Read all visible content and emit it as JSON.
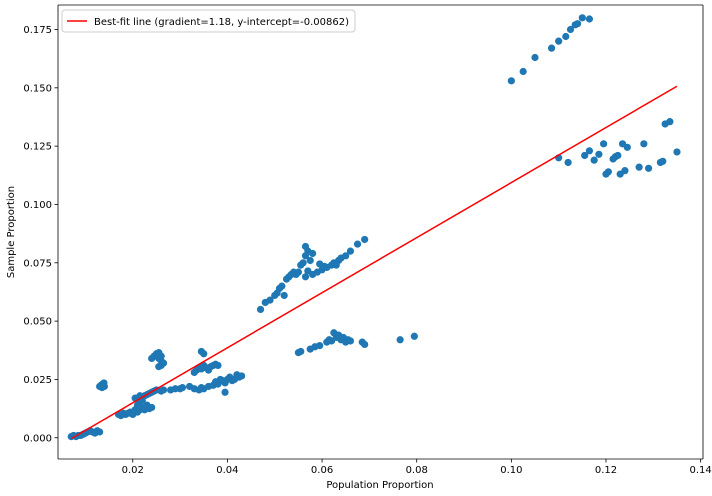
{
  "chart_data": {
    "type": "scatter",
    "title": "",
    "xlabel": "Population Proportion",
    "ylabel": "Sample Proportion",
    "xlim": [
      0.0042,
      0.1405
    ],
    "ylim": [
      -0.0091,
      0.1855
    ],
    "xticks": [
      0.02,
      0.04,
      0.06,
      0.08,
      0.1,
      0.12,
      0.14
    ],
    "xtick_labels": [
      "0.02",
      "0.04",
      "0.06",
      "0.08",
      "0.10",
      "0.12",
      "0.14"
    ],
    "yticks": [
      0.0,
      0.025,
      0.05,
      0.075,
      0.1,
      0.125,
      0.15,
      0.175
    ],
    "ytick_labels": [
      "0.000",
      "0.025",
      "0.050",
      "0.075",
      "0.100",
      "0.125",
      "0.150",
      "0.175"
    ],
    "grid": false,
    "legend_position": "top-left",
    "colors": {
      "points": "#1f77b4",
      "line": "#ff0000"
    },
    "series": [
      {
        "kind": "scatter",
        "points": [
          [
            0.007,
            0.0005
          ],
          [
            0.0075,
            0.001
          ],
          [
            0.008,
            0.0005
          ],
          [
            0.0085,
            0.001
          ],
          [
            0.009,
            0.001
          ],
          [
            0.0095,
            0.0015
          ],
          [
            0.01,
            0.002
          ],
          [
            0.0105,
            0.0025
          ],
          [
            0.011,
            0.003
          ],
          [
            0.0115,
            0.0025
          ],
          [
            0.012,
            0.002
          ],
          [
            0.0125,
            0.003
          ],
          [
            0.013,
            0.0025
          ],
          [
            0.013,
            0.022
          ],
          [
            0.0133,
            0.0225
          ],
          [
            0.0136,
            0.023
          ],
          [
            0.0139,
            0.0235
          ],
          [
            0.014,
            0.022
          ],
          [
            0.0135,
            0.0215
          ],
          [
            0.017,
            0.01
          ],
          [
            0.0175,
            0.0095
          ],
          [
            0.018,
            0.0105
          ],
          [
            0.0185,
            0.01
          ],
          [
            0.019,
            0.0105
          ],
          [
            0.0195,
            0.011
          ],
          [
            0.02,
            0.01
          ],
          [
            0.0205,
            0.012
          ],
          [
            0.021,
            0.011
          ],
          [
            0.0215,
            0.012
          ],
          [
            0.022,
            0.013
          ],
          [
            0.0225,
            0.012
          ],
          [
            0.023,
            0.014
          ],
          [
            0.0235,
            0.0125
          ],
          [
            0.024,
            0.013
          ],
          [
            0.021,
            0.014
          ],
          [
            0.0215,
            0.015
          ],
          [
            0.022,
            0.016
          ],
          [
            0.0205,
            0.017
          ],
          [
            0.021,
            0.0165
          ],
          [
            0.0215,
            0.018
          ],
          [
            0.022,
            0.0175
          ],
          [
            0.0225,
            0.018
          ],
          [
            0.023,
            0.0185
          ],
          [
            0.0235,
            0.019
          ],
          [
            0.024,
            0.0195
          ],
          [
            0.0245,
            0.02
          ],
          [
            0.025,
            0.0205
          ],
          [
            0.026,
            0.02
          ],
          [
            0.0265,
            0.0205
          ],
          [
            0.024,
            0.034
          ],
          [
            0.0245,
            0.035
          ],
          [
            0.025,
            0.036
          ],
          [
            0.0255,
            0.0365
          ],
          [
            0.026,
            0.035
          ],
          [
            0.0255,
            0.034
          ],
          [
            0.026,
            0.033
          ],
          [
            0.0265,
            0.032
          ],
          [
            0.026,
            0.031
          ],
          [
            0.0255,
            0.0305
          ],
          [
            0.028,
            0.0205
          ],
          [
            0.029,
            0.021
          ],
          [
            0.03,
            0.021
          ],
          [
            0.0305,
            0.0215
          ],
          [
            0.032,
            0.022
          ],
          [
            0.033,
            0.021
          ],
          [
            0.034,
            0.0205
          ],
          [
            0.0345,
            0.0215
          ],
          [
            0.035,
            0.021
          ],
          [
            0.036,
            0.022
          ],
          [
            0.037,
            0.0225
          ],
          [
            0.0375,
            0.024
          ],
          [
            0.038,
            0.023
          ],
          [
            0.0385,
            0.025
          ],
          [
            0.039,
            0.0245
          ],
          [
            0.0395,
            0.0235
          ],
          [
            0.04,
            0.025
          ],
          [
            0.0405,
            0.026
          ],
          [
            0.041,
            0.0245
          ],
          [
            0.0415,
            0.025
          ],
          [
            0.042,
            0.027
          ],
          [
            0.0425,
            0.026
          ],
          [
            0.043,
            0.0265
          ],
          [
            0.0395,
            0.0195
          ],
          [
            0.033,
            0.028
          ],
          [
            0.0335,
            0.029
          ],
          [
            0.034,
            0.03
          ],
          [
            0.0345,
            0.0295
          ],
          [
            0.035,
            0.031
          ],
          [
            0.0355,
            0.03
          ],
          [
            0.036,
            0.029
          ],
          [
            0.0365,
            0.0305
          ],
          [
            0.037,
            0.031
          ],
          [
            0.0375,
            0.0315
          ],
          [
            0.038,
            0.031
          ],
          [
            0.0345,
            0.037
          ],
          [
            0.035,
            0.036
          ],
          [
            0.047,
            0.055
          ],
          [
            0.048,
            0.058
          ],
          [
            0.049,
            0.059
          ],
          [
            0.05,
            0.061
          ],
          [
            0.0505,
            0.062
          ],
          [
            0.051,
            0.064
          ],
          [
            0.0515,
            0.065
          ],
          [
            0.052,
            0.061
          ],
          [
            0.0525,
            0.068
          ],
          [
            0.053,
            0.069
          ],
          [
            0.0535,
            0.07
          ],
          [
            0.054,
            0.071
          ],
          [
            0.0545,
            0.07
          ],
          [
            0.055,
            0.071
          ],
          [
            0.0555,
            0.074
          ],
          [
            0.056,
            0.075
          ],
          [
            0.0565,
            0.078
          ],
          [
            0.057,
            0.08
          ],
          [
            0.0565,
            0.082
          ],
          [
            0.058,
            0.079
          ],
          [
            0.0575,
            0.076
          ],
          [
            0.0565,
            0.069
          ],
          [
            0.057,
            0.0715
          ],
          [
            0.058,
            0.07
          ],
          [
            0.059,
            0.071
          ],
          [
            0.06,
            0.072
          ],
          [
            0.061,
            0.073
          ],
          [
            0.062,
            0.074
          ],
          [
            0.0625,
            0.075
          ],
          [
            0.063,
            0.074
          ],
          [
            0.0635,
            0.076
          ],
          [
            0.064,
            0.077
          ],
          [
            0.065,
            0.078
          ],
          [
            0.066,
            0.08
          ],
          [
            0.0675,
            0.083
          ],
          [
            0.069,
            0.085
          ],
          [
            0.0595,
            0.0745
          ],
          [
            0.0605,
            0.0735
          ],
          [
            0.055,
            0.0365
          ],
          [
            0.0555,
            0.037
          ],
          [
            0.0575,
            0.038
          ],
          [
            0.0585,
            0.039
          ],
          [
            0.0595,
            0.0395
          ],
          [
            0.061,
            0.041
          ],
          [
            0.0615,
            0.042
          ],
          [
            0.062,
            0.0415
          ],
          [
            0.0625,
            0.045
          ],
          [
            0.063,
            0.043
          ],
          [
            0.0635,
            0.044
          ],
          [
            0.064,
            0.042
          ],
          [
            0.0645,
            0.043
          ],
          [
            0.065,
            0.041
          ],
          [
            0.0655,
            0.042
          ],
          [
            0.066,
            0.0415
          ],
          [
            0.0685,
            0.041
          ],
          [
            0.069,
            0.04
          ],
          [
            0.0765,
            0.042
          ],
          [
            0.0795,
            0.0435
          ],
          [
            0.1,
            0.153
          ],
          [
            0.1025,
            0.157
          ],
          [
            0.105,
            0.163
          ],
          [
            0.1085,
            0.167
          ],
          [
            0.11,
            0.17
          ],
          [
            0.1115,
            0.172
          ],
          [
            0.1125,
            0.175
          ],
          [
            0.1135,
            0.177
          ],
          [
            0.114,
            0.1775
          ],
          [
            0.115,
            0.18
          ],
          [
            0.1165,
            0.1795
          ],
          [
            0.11,
            0.12
          ],
          [
            0.112,
            0.118
          ],
          [
            0.1155,
            0.121
          ],
          [
            0.1165,
            0.123
          ],
          [
            0.1175,
            0.119
          ],
          [
            0.1185,
            0.1215
          ],
          [
            0.1195,
            0.126
          ],
          [
            0.12,
            0.113
          ],
          [
            0.1205,
            0.114
          ],
          [
            0.1215,
            0.1195
          ],
          [
            0.122,
            0.1205
          ],
          [
            0.1225,
            0.121
          ],
          [
            0.123,
            0.113
          ],
          [
            0.1235,
            0.126
          ],
          [
            0.124,
            0.1145
          ],
          [
            0.1245,
            0.1245
          ],
          [
            0.127,
            0.116
          ],
          [
            0.128,
            0.126
          ],
          [
            0.129,
            0.1155
          ],
          [
            0.1315,
            0.118
          ],
          [
            0.132,
            0.1185
          ],
          [
            0.1325,
            0.1345
          ],
          [
            0.1335,
            0.1355
          ],
          [
            0.135,
            0.1225
          ]
        ]
      },
      {
        "kind": "line",
        "name": "Best-fit line (gradient=1.18, y-intercept=-0.00862)",
        "points": [
          [
            0.007,
            -0.00036
          ],
          [
            0.135,
            0.15068
          ]
        ]
      }
    ]
  }
}
